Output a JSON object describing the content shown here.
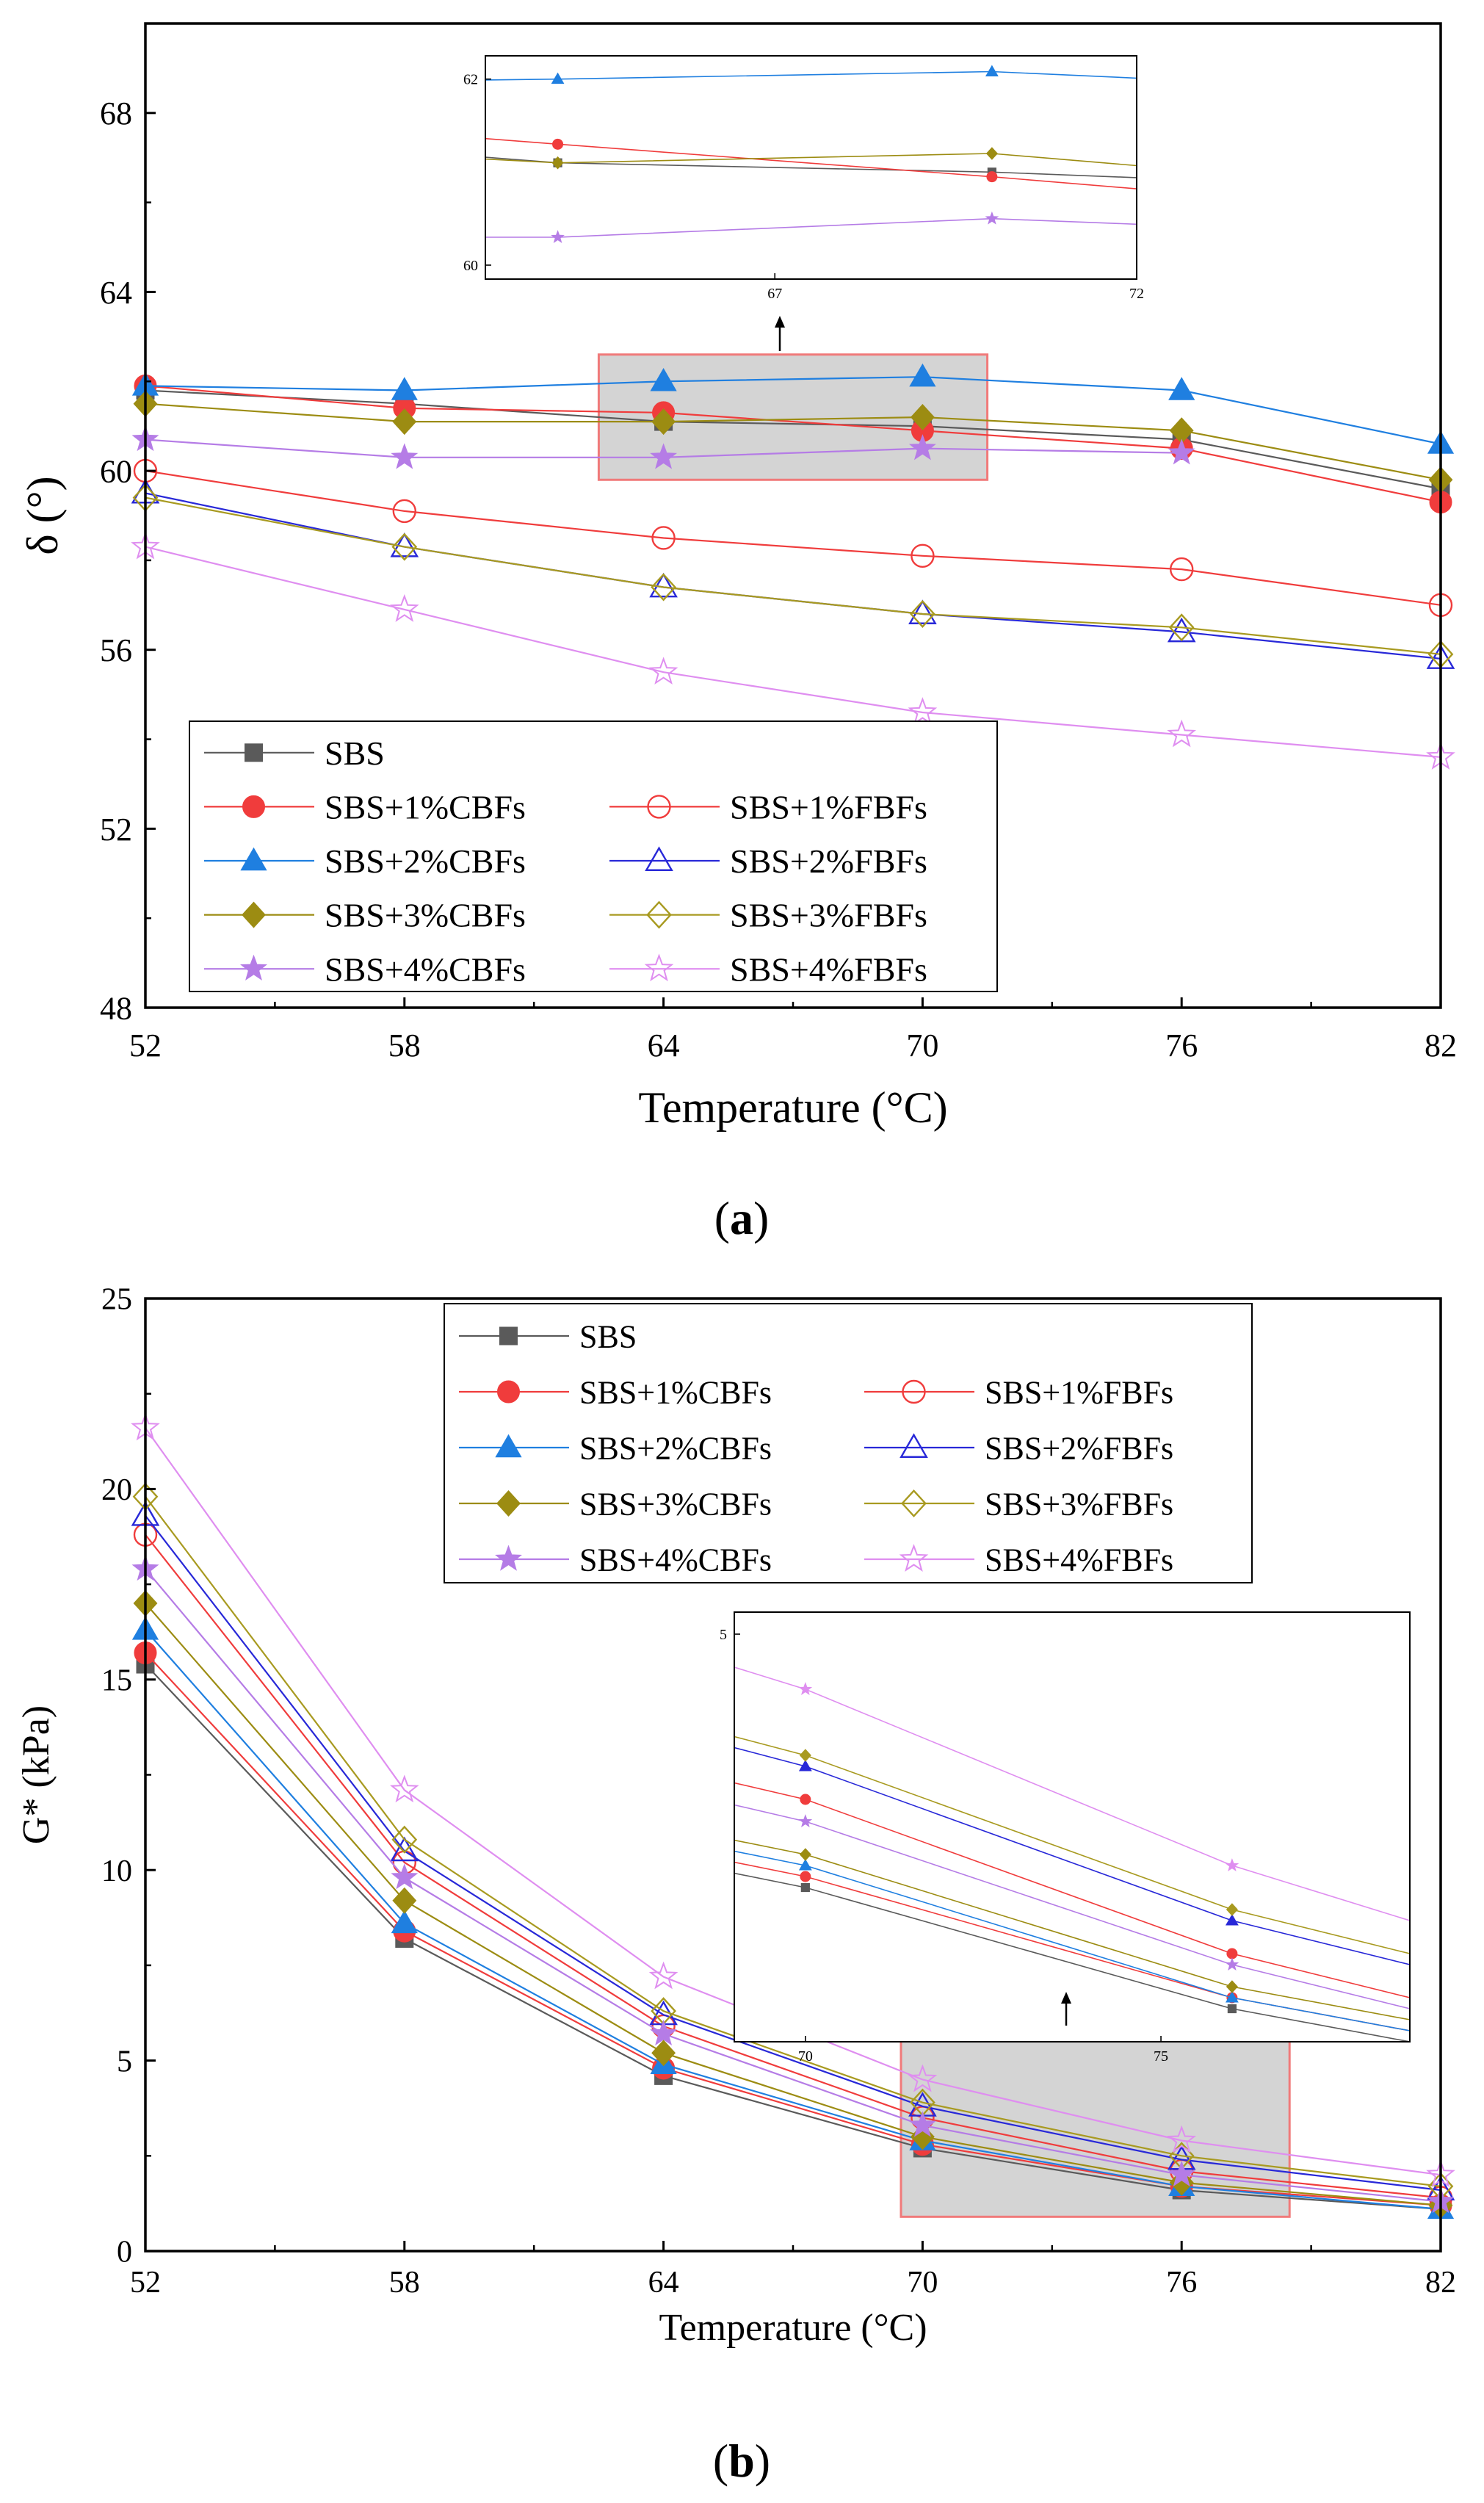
{
  "chart_data": [
    {
      "type": "line",
      "panel_label": "(a)",
      "caption_parts": {
        "open": "(",
        "letter": "a",
        "close": ")"
      },
      "xlabel": "Temperature (°C)",
      "ylabel": "δ (°)",
      "x": [
        52,
        58,
        64,
        70,
        76,
        82
      ],
      "xlim": [
        52,
        82
      ],
      "ylim": [
        48,
        70
      ],
      "xticks": [
        "52",
        "58",
        "64",
        "70",
        "76",
        "82"
      ],
      "yticks": [
        "48",
        "52",
        "56",
        "60",
        "64",
        "68"
      ],
      "legend_position": "bottom-left",
      "series": [
        {
          "name": "SBS",
          "color": "#5a5a5a",
          "marker": "square",
          "filled": true,
          "values": [
            61.8,
            61.5,
            61.1,
            61.0,
            60.7,
            59.6
          ]
        },
        {
          "name": "SBS+1%CBFs",
          "color": "#f03c3c",
          "marker": "circle",
          "filled": true,
          "values": [
            61.9,
            61.4,
            61.3,
            60.9,
            60.5,
            59.3
          ]
        },
        {
          "name": "SBS+1%FBFs",
          "color": "#f03c3c",
          "marker": "circle",
          "filled": false,
          "values": [
            60.0,
            59.1,
            58.5,
            58.1,
            57.8,
            57.0
          ]
        },
        {
          "name": "SBS+2%CBFs",
          "color": "#1f7fe0",
          "marker": "triangle",
          "filled": true,
          "values": [
            61.9,
            61.8,
            62.0,
            62.1,
            61.8,
            60.6
          ]
        },
        {
          "name": "SBS+2%FBFs",
          "color": "#2828d8",
          "marker": "triangle",
          "filled": false,
          "values": [
            59.5,
            58.3,
            57.4,
            56.8,
            56.4,
            55.8
          ]
        },
        {
          "name": "SBS+3%CBFs",
          "color": "#9c8c12",
          "marker": "diamond",
          "filled": true,
          "values": [
            61.5,
            61.1,
            61.1,
            61.2,
            60.9,
            59.8
          ]
        },
        {
          "name": "SBS+3%FBFs",
          "color": "#a89a20",
          "marker": "diamond",
          "filled": false,
          "values": [
            59.4,
            58.3,
            57.4,
            56.8,
            56.5,
            55.9
          ]
        },
        {
          "name": "SBS+4%CBFs",
          "color": "#b57ce6",
          "marker": "star",
          "filled": true,
          "values": [
            60.7,
            60.3,
            60.3,
            60.5,
            60.4,
            null
          ]
        },
        {
          "name": "SBS+4%FBFs",
          "color": "#df8ef0",
          "marker": "star",
          "filled": false,
          "values": [
            58.3,
            56.9,
            55.5,
            54.6,
            54.1,
            53.6
          ]
        }
      ],
      "highlight_box": {
        "x_range": [
          62.5,
          71.5
        ],
        "y_range": [
          59.8,
          62.6
        ]
      },
      "inset": {
        "xlim": [
          63,
          72
        ],
        "ylim": [
          59.85,
          62.25
        ],
        "xticks": [
          "67",
          "72"
        ],
        "yticks": [
          "60",
          "62"
        ],
        "series": [
          {
            "name": "SBS",
            "values": [
              [
                63,
                61.16
              ],
              [
                64,
                61.1
              ],
              [
                70,
                61.0
              ],
              [
                72,
                60.94
              ]
            ]
          },
          {
            "name": "SBS+1%CBFs",
            "values": [
              [
                63,
                61.36
              ],
              [
                64,
                61.3
              ],
              [
                70,
                60.95
              ],
              [
                72,
                60.82
              ]
            ]
          },
          {
            "name": "SBS+2%CBFs",
            "values": [
              [
                63,
                61.99
              ],
              [
                64,
                62.0
              ],
              [
                70,
                62.08
              ],
              [
                72,
                62.01
              ]
            ]
          },
          {
            "name": "SBS+3%CBFs",
            "values": [
              [
                63,
                61.14
              ],
              [
                64,
                61.1
              ],
              [
                70,
                61.2
              ],
              [
                72,
                61.07
              ]
            ]
          },
          {
            "name": "SBS+4%CBFs",
            "values": [
              [
                63,
                60.3
              ],
              [
                64,
                60.3
              ],
              [
                70,
                60.5
              ],
              [
                72,
                60.44
              ]
            ]
          }
        ]
      }
    },
    {
      "type": "line",
      "panel_label": "(b)",
      "caption_parts": {
        "open": "(",
        "letter": "b",
        "close": ")"
      },
      "xlabel": "Temperature (°C)",
      "ylabel": "G* (kPa)",
      "x": [
        52,
        58,
        64,
        70,
        76,
        82
      ],
      "xlim": [
        52,
        82
      ],
      "ylim": [
        0,
        25
      ],
      "xticks": [
        "52",
        "58",
        "64",
        "70",
        "76",
        "82"
      ],
      "yticks": [
        "0",
        "5",
        "10",
        "15",
        "20",
        "25"
      ],
      "legend_position": "top-center",
      "series": [
        {
          "name": "SBS",
          "color": "#5a5a5a",
          "marker": "square",
          "filled": true,
          "values": [
            15.4,
            8.2,
            4.6,
            2.7,
            1.6,
            1.1
          ]
        },
        {
          "name": "SBS+1%CBFs",
          "color": "#f03c3c",
          "marker": "circle",
          "filled": true,
          "values": [
            15.7,
            8.4,
            4.8,
            2.8,
            1.7,
            1.2
          ]
        },
        {
          "name": "SBS+1%FBFs",
          "color": "#f03c3c",
          "marker": "circle",
          "filled": false,
          "values": [
            18.8,
            10.2,
            5.9,
            3.5,
            2.1,
            1.4
          ]
        },
        {
          "name": "SBS+2%CBFs",
          "color": "#1f7fe0",
          "marker": "triangle",
          "filled": true,
          "values": [
            16.3,
            8.6,
            4.9,
            2.9,
            1.7,
            1.1
          ]
        },
        {
          "name": "SBS+2%FBFs",
          "color": "#2828d8",
          "marker": "triangle",
          "filled": false,
          "values": [
            19.3,
            10.5,
            6.2,
            3.8,
            2.4,
            1.6
          ]
        },
        {
          "name": "SBS+3%CBFs",
          "color": "#9c8c12",
          "marker": "diamond",
          "filled": true,
          "values": [
            17.0,
            9.2,
            5.2,
            3.0,
            1.8,
            1.2
          ]
        },
        {
          "name": "SBS+3%FBFs",
          "color": "#a89a20",
          "marker": "diamond",
          "filled": false,
          "values": [
            19.8,
            10.8,
            6.3,
            3.9,
            2.5,
            1.7
          ]
        },
        {
          "name": "SBS+4%CBFs",
          "color": "#b57ce6",
          "marker": "star",
          "filled": true,
          "values": [
            17.9,
            9.8,
            5.7,
            3.3,
            2.0,
            1.3
          ]
        },
        {
          "name": "SBS+4%FBFs",
          "color": "#df8ef0",
          "marker": "star",
          "filled": false,
          "values": [
            21.6,
            12.1,
            7.2,
            4.5,
            2.9,
            2.0
          ]
        }
      ],
      "highlight_box": {
        "x_range": [
          69.5,
          78.5
        ],
        "y_range": [
          0.9,
          5.8
        ]
      },
      "inset": {
        "xlim": [
          69,
          78.5
        ],
        "ylim": [
          1.3,
          5.2
        ],
        "xticks": [
          "70",
          "75"
        ],
        "yticks": [
          "5"
        ],
        "series": [
          {
            "name": "SBS",
            "values": [
              [
                69,
                2.83
              ],
              [
                70,
                2.7
              ],
              [
                76,
                1.6
              ],
              [
                78.5,
                1.3
              ]
            ]
          },
          {
            "name": "SBS+1%CBFs",
            "values": [
              [
                69,
                2.93
              ],
              [
                70,
                2.8
              ],
              [
                76,
                1.7
              ],
              [
                78.5,
                1.4
              ]
            ]
          },
          {
            "name": "SBS+1%FBFs",
            "values": [
              [
                69,
                3.65
              ],
              [
                70,
                3.5
              ],
              [
                76,
                2.1
              ],
              [
                78.5,
                1.7
              ]
            ]
          },
          {
            "name": "SBS+2%CBFs",
            "values": [
              [
                69,
                3.03
              ],
              [
                70,
                2.9
              ],
              [
                76,
                1.7
              ],
              [
                78.5,
                1.4
              ]
            ]
          },
          {
            "name": "SBS+2%FBFs",
            "values": [
              [
                69,
                3.97
              ],
              [
                70,
                3.8
              ],
              [
                76,
                2.4
              ],
              [
                78.5,
                2.0
              ]
            ]
          },
          {
            "name": "SBS+3%CBFs",
            "values": [
              [
                69,
                3.13
              ],
              [
                70,
                3.0
              ],
              [
                76,
                1.8
              ],
              [
                78.5,
                1.5
              ]
            ]
          },
          {
            "name": "SBS+3%FBFs",
            "values": [
              [
                69,
                4.07
              ],
              [
                70,
                3.9
              ],
              [
                76,
                2.5
              ],
              [
                78.5,
                2.1
              ]
            ]
          },
          {
            "name": "SBS+4%CBFs",
            "values": [
              [
                69,
                3.45
              ],
              [
                70,
                3.3
              ],
              [
                76,
                2.0
              ],
              [
                78.5,
                1.6
              ]
            ]
          },
          {
            "name": "SBS+4%FBFs",
            "values": [
              [
                69,
                4.7
              ],
              [
                70,
                4.5
              ],
              [
                76,
                2.9
              ],
              [
                78.5,
                2.4
              ]
            ]
          }
        ]
      }
    }
  ]
}
